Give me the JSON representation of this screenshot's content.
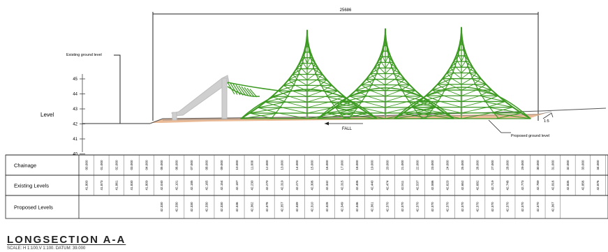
{
  "annotations": {
    "dimension": "25686",
    "existing_ground_label": "Existing ground level",
    "proposed_ground_label": "Proposed ground level",
    "fall_label": "FALL",
    "gradient_label": "1:5",
    "level_axis_label": "Level",
    "level_ticks": [
      "45",
      "44",
      "43",
      "42",
      "41",
      "40"
    ]
  },
  "table": {
    "row_labels": [
      "Chainage",
      "Existing Levels",
      "Proposed Levels"
    ],
    "chainage": [
      "00.000",
      "01.000",
      "02.000",
      "03.000",
      "04.000",
      "05.000",
      "06.000",
      "07.000",
      "08.000",
      "09.000",
      "10.000",
      "11.000",
      "12.000",
      "13.000",
      "14.000",
      "15.000",
      "16.000",
      "17.000",
      "18.000",
      "19.000",
      "20.000",
      "21.000",
      "22.000",
      "23.000",
      "24.000",
      "25.000",
      "26.000",
      "27.000",
      "28.000",
      "29.000",
      "30.000",
      "31.000",
      "32.000",
      "33.000",
      "34.000",
      "35.000"
    ],
    "existing_levels": [
      "41.800",
      "41.873",
      "41.861",
      "41.830",
      "41.809",
      "42.040",
      "42.101",
      "42.185",
      "42.165",
      "42.154",
      "42.187",
      "42.230",
      "42.270",
      "42.319",
      "42.271",
      "42.306",
      "42.342",
      "42.315",
      "42.406",
      "42.440",
      "42.474",
      "42.511",
      "42.537",
      "42.586",
      "42.620",
      "42.652",
      "42.682",
      "42.719",
      "42.748",
      "42.773",
      "42.789",
      "42.816",
      "42.835",
      "42.856",
      "42.876",
      "42.894"
    ],
    "proposed_levels": [
      "",
      "",
      "",
      "",
      "",
      "42.330",
      "42.330",
      "42.330",
      "42.330",
      "42.330",
      "42.346",
      "42.362",
      "42.378",
      "42.357",
      "42.339",
      "42.310",
      "42.328",
      "42.349",
      "42.346",
      "42.361",
      "42.370",
      "42.370",
      "42.370",
      "42.370",
      "42.370",
      "42.370",
      "42.370",
      "42.370",
      "42.370",
      "42.370",
      "42.370",
      "42.367",
      "",
      "",
      "",
      ""
    ]
  },
  "title_block": {
    "title": "LONGSECTION A-A",
    "scale": "SCALE: H 1:100,V 1:100. DATUM: 39.000"
  },
  "colors": {
    "structure": "#3d9a22",
    "wall": "#c9c9c9",
    "sand": "#e9b48c",
    "line": "#222222"
  }
}
